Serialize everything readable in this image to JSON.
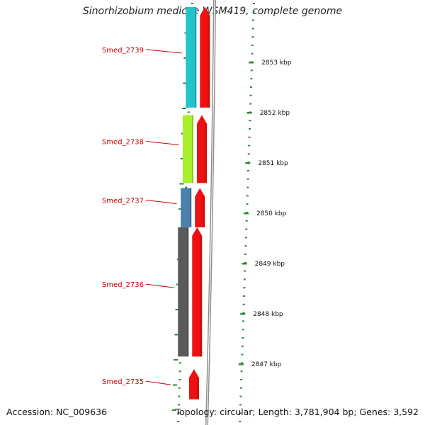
{
  "title": "Sinorhizobium medicae WSM419, complete genome",
  "accession": "Accession: NC_009636",
  "topology": "Topology: circular; Length: 3,781,904 bp; Genes: 3,592",
  "colors": {
    "cog_cyan": "#21c4cc",
    "cog_lime": "#a6f02a",
    "cog_blue": "#4a7fae",
    "cog_gray": "#5a5a5a",
    "strand_red": "#ee1111",
    "backbone": "#8a8a8a",
    "tick_green": "#2e8b2e",
    "label_red": "#cc0000"
  },
  "scale": {
    "unit": "kbp",
    "ticks": [
      {
        "label": "2853 kbp",
        "kbp": 2853
      },
      {
        "label": "2852 kbp",
        "kbp": 2852
      },
      {
        "label": "2851 kbp",
        "kbp": 2851
      },
      {
        "label": "2850 kbp",
        "kbp": 2850
      },
      {
        "label": "2849 kbp",
        "kbp": 2849
      },
      {
        "label": "2848 kbp",
        "kbp": 2848
      },
      {
        "label": "2847 kbp",
        "kbp": 2847
      }
    ]
  },
  "genes": [
    {
      "name": "Smed_2739",
      "start_kbp": 2852.1,
      "end_kbp": 2854.1,
      "cog_color": "cog_cyan",
      "has_cog": true
    },
    {
      "name": "Smed_2738",
      "start_kbp": 2850.6,
      "end_kbp": 2851.95,
      "cog_color": "cog_lime",
      "has_cog": true
    },
    {
      "name": "Smed_2737",
      "start_kbp": 2849.72,
      "end_kbp": 2850.5,
      "cog_color": "cog_blue",
      "has_cog": true
    },
    {
      "name": "Smed_2736",
      "start_kbp": 2847.15,
      "end_kbp": 2849.72,
      "cog_color": "cog_gray",
      "has_cog": true
    },
    {
      "name": "Smed_2735",
      "start_kbp": 2846.3,
      "end_kbp": 2846.9,
      "cog_color": "",
      "has_cog": false
    }
  ]
}
